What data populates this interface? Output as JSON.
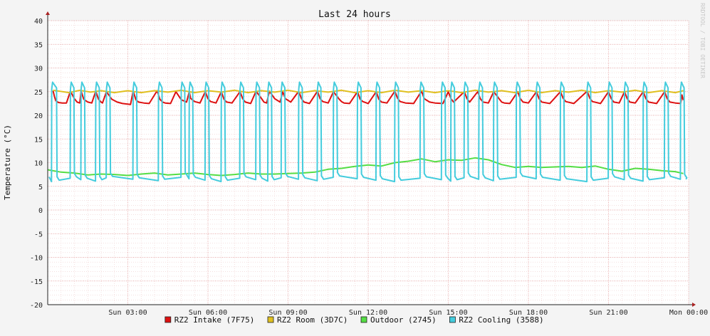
{
  "chart_data": {
    "type": "line",
    "title": "Last 24 hours",
    "ylabel": "Temperature (°C)",
    "xlabel": "",
    "watermark": "RRDTOOL / TOBI OETIKER",
    "ylim": [
      -20,
      40
    ],
    "yticks": [
      40,
      35,
      30,
      25,
      20,
      15,
      10,
      5,
      0,
      -5,
      -10,
      -15,
      -20
    ],
    "xlim_hours": [
      0,
      24
    ],
    "xticks": [
      {
        "label": "Sun 03:00",
        "hour": 3
      },
      {
        "label": "Sun 06:00",
        "hour": 6
      },
      {
        "label": "Sun 09:00",
        "hour": 9
      },
      {
        "label": "Sun 12:00",
        "hour": 12
      },
      {
        "label": "Sun 15:00",
        "hour": 15
      },
      {
        "label": "Sun 18:00",
        "hour": 18
      },
      {
        "label": "Sun 21:00",
        "hour": 21
      },
      {
        "label": "Mon 00:00",
        "hour": 24
      }
    ],
    "grid": true,
    "legend_position": "bottom",
    "series": [
      {
        "name": "RZ2 Intake (7F75)",
        "color": "#dd1111",
        "x": [
          0.2,
          0.25,
          0.3,
          0.4,
          0.55,
          0.7,
          0.85,
          1.0,
          1.1,
          1.2,
          1.25,
          1.35,
          1.5,
          1.65,
          1.8,
          1.9,
          2.0,
          2.05,
          2.2,
          2.4,
          2.6,
          2.8,
          3.1,
          3.2,
          3.3,
          3.4,
          3.6,
          3.8,
          4.1,
          4.2,
          4.3,
          4.4,
          4.6,
          4.8,
          5.0,
          5.2,
          5.3,
          5.35,
          5.5,
          5.7,
          5.9,
          6.0,
          6.1,
          6.3,
          6.5,
          6.6,
          6.7,
          6.9,
          7.2,
          7.3,
          7.4,
          7.6,
          7.8,
          8.0,
          8.1,
          8.2,
          8.3,
          8.5,
          8.7,
          8.8,
          8.9,
          9.1,
          9.4,
          9.5,
          9.6,
          9.8,
          10.1,
          10.2,
          10.3,
          10.5,
          10.7,
          10.9,
          11.0,
          11.1,
          11.3,
          11.6,
          11.7,
          11.8,
          12.0,
          12.3,
          12.4,
          12.5,
          12.7,
          13.0,
          13.1,
          13.2,
          13.4,
          13.7,
          14.0,
          14.1,
          14.3,
          14.5,
          14.8,
          15.0,
          15.1,
          15.2,
          15.6,
          15.7,
          15.8,
          16.1,
          16.2,
          16.3,
          16.5,
          16.7,
          16.9,
          17.0,
          17.1,
          17.3,
          17.6,
          17.7,
          17.8,
          18.0,
          18.3,
          18.4,
          18.5,
          18.8,
          19.2,
          19.3,
          19.4,
          19.7,
          20.2,
          20.3,
          20.4,
          20.7,
          21.0,
          21.1,
          21.2,
          21.4,
          21.6,
          21.7,
          21.8,
          22.0,
          22.3,
          22.4,
          22.5,
          22.8,
          23.1,
          23.2,
          23.3,
          23.5,
          23.7,
          23.75,
          23.8
        ],
        "y": [
          25.2,
          24.0,
          23.1,
          22.7,
          22.6,
          22.6,
          25.1,
          23.5,
          22.8,
          22.6,
          25.1,
          23.4,
          22.8,
          22.6,
          25.1,
          23.4,
          22.8,
          22.6,
          25.0,
          23.4,
          22.8,
          22.5,
          22.3,
          25.1,
          23.3,
          22.8,
          22.6,
          22.5,
          25.2,
          23.4,
          22.8,
          22.6,
          22.5,
          25.0,
          23.3,
          22.8,
          25.0,
          23.6,
          22.9,
          22.6,
          25.0,
          23.5,
          22.9,
          22.6,
          25.0,
          23.4,
          22.8,
          22.6,
          25.0,
          23.5,
          22.8,
          22.5,
          25.1,
          23.6,
          22.8,
          22.6,
          25.1,
          23.5,
          22.8,
          25.0,
          23.5,
          22.8,
          25.1,
          23.5,
          22.8,
          22.5,
          25.1,
          23.5,
          22.9,
          22.6,
          25.0,
          23.5,
          22.9,
          22.6,
          22.5,
          25.0,
          23.4,
          22.9,
          22.5,
          25.0,
          23.4,
          22.8,
          22.6,
          25.1,
          23.6,
          22.9,
          22.6,
          22.5,
          25.1,
          23.5,
          22.8,
          22.6,
          22.5,
          25.0,
          23.5,
          22.8,
          25.0,
          23.5,
          22.8,
          25.0,
          23.5,
          22.8,
          22.6,
          25.0,
          23.5,
          22.8,
          22.6,
          22.5,
          25.0,
          23.5,
          22.8,
          22.6,
          25.0,
          23.5,
          22.8,
          22.5,
          25.0,
          23.6,
          22.9,
          22.5,
          25.1,
          23.6,
          22.9,
          22.5,
          25.0,
          23.5,
          22.8,
          22.6,
          25.0,
          23.5,
          22.8,
          22.6,
          25.0,
          23.5,
          22.8,
          22.5,
          25.0,
          23.5,
          22.8,
          22.6,
          22.5,
          24.3,
          23.2
        ]
      },
      {
        "name": "RZ2 Room (3D7C)",
        "color": "#e0c020",
        "x": [
          0.2,
          0.8,
          1.2,
          1.6,
          2.0,
          2.5,
          3.0,
          3.5,
          4.0,
          4.5,
          5.0,
          5.5,
          6.0,
          6.5,
          7.0,
          7.5,
          8.0,
          8.5,
          9.0,
          9.5,
          10.0,
          10.5,
          11.0,
          11.5,
          12.0,
          12.5,
          13.0,
          13.5,
          14.0,
          14.5,
          15.0,
          15.5,
          16.0,
          16.5,
          17.0,
          17.5,
          18.0,
          18.5,
          19.0,
          19.5,
          20.0,
          20.5,
          21.0,
          21.5,
          22.0,
          22.5,
          23.0,
          23.5,
          23.8
        ],
        "y": [
          25.3,
          24.8,
          25.3,
          24.9,
          25.2,
          24.8,
          25.2,
          24.8,
          25.2,
          24.9,
          25.3,
          24.8,
          25.2,
          24.9,
          25.3,
          24.8,
          25.2,
          24.9,
          25.3,
          24.8,
          25.2,
          24.9,
          25.3,
          24.8,
          25.2,
          24.8,
          25.3,
          24.9,
          25.2,
          24.8,
          25.2,
          24.8,
          25.3,
          24.9,
          25.2,
          24.8,
          25.3,
          24.8,
          25.2,
          24.9,
          25.3,
          24.8,
          25.2,
          24.9,
          25.3,
          24.8,
          25.2,
          24.8,
          25.2
        ]
      },
      {
        "name": "Outdoor (2745)",
        "color": "#55dd44",
        "x": [
          0.0,
          0.5,
          1.0,
          1.5,
          2.0,
          2.5,
          3.0,
          3.5,
          4.0,
          4.5,
          5.0,
          5.5,
          6.0,
          6.5,
          7.0,
          7.5,
          8.0,
          8.5,
          9.0,
          9.5,
          10.0,
          10.5,
          11.0,
          11.5,
          12.0,
          12.5,
          13.0,
          13.5,
          14.0,
          14.5,
          15.0,
          15.5,
          16.0,
          16.5,
          17.0,
          17.5,
          18.0,
          18.5,
          19.0,
          19.5,
          20.0,
          20.5,
          21.0,
          21.5,
          22.0,
          22.5,
          23.0,
          23.5,
          23.8
        ],
        "y": [
          8.5,
          8.0,
          7.8,
          7.4,
          7.6,
          7.5,
          7.3,
          7.6,
          7.8,
          7.4,
          7.6,
          7.8,
          7.5,
          7.3,
          7.5,
          7.8,
          7.6,
          7.6,
          7.7,
          7.8,
          8.0,
          8.6,
          8.8,
          9.2,
          9.5,
          9.3,
          10.0,
          10.3,
          10.8,
          10.2,
          10.6,
          10.5,
          11.0,
          10.6,
          9.6,
          9.0,
          9.2,
          9.0,
          9.1,
          9.2,
          9.0,
          9.3,
          8.6,
          8.2,
          8.8,
          8.6,
          8.3,
          8.1,
          7.7
        ]
      },
      {
        "name": "RZ2 Cooling (3588)",
        "color": "#44ccdd",
        "cycles": [
          {
            "on": 0.15,
            "off": 0.35
          },
          {
            "on": 0.85,
            "off": 1.0
          },
          {
            "on": 1.25,
            "off": 1.4
          },
          {
            "on": 1.8,
            "off": 1.95
          },
          {
            "on": 2.2,
            "off": 2.35
          },
          {
            "on": 3.2,
            "off": 3.35
          },
          {
            "on": 4.15,
            "off": 4.3
          },
          {
            "on": 5.0,
            "off": 5.15
          },
          {
            "on": 5.3,
            "off": 5.45
          },
          {
            "on": 5.9,
            "off": 6.05
          },
          {
            "on": 6.5,
            "off": 6.65
          },
          {
            "on": 7.2,
            "off": 7.35
          },
          {
            "on": 7.8,
            "off": 7.95
          },
          {
            "on": 8.25,
            "off": 8.4
          },
          {
            "on": 8.75,
            "off": 8.9
          },
          {
            "on": 9.4,
            "off": 9.55
          },
          {
            "on": 10.1,
            "off": 10.25
          },
          {
            "on": 10.7,
            "off": 10.85
          },
          {
            "on": 11.6,
            "off": 11.75
          },
          {
            "on": 12.3,
            "off": 12.45
          },
          {
            "on": 13.0,
            "off": 13.15
          },
          {
            "on": 13.95,
            "off": 14.1
          },
          {
            "on": 14.75,
            "off": 14.9
          },
          {
            "on": 15.1,
            "off": 15.25
          },
          {
            "on": 15.6,
            "off": 15.75
          },
          {
            "on": 16.15,
            "off": 16.3
          },
          {
            "on": 16.7,
            "off": 16.85
          },
          {
            "on": 17.55,
            "off": 17.7
          },
          {
            "on": 18.3,
            "off": 18.45
          },
          {
            "on": 19.2,
            "off": 19.35
          },
          {
            "on": 20.2,
            "off": 20.35
          },
          {
            "on": 21.0,
            "off": 21.15
          },
          {
            "on": 21.6,
            "off": 21.75
          },
          {
            "on": 22.3,
            "off": 22.45
          },
          {
            "on": 23.1,
            "off": 23.25
          },
          {
            "on": 23.7,
            "off": 23.85
          }
        ],
        "peak": 27.0,
        "low": 6.0
      }
    ]
  }
}
